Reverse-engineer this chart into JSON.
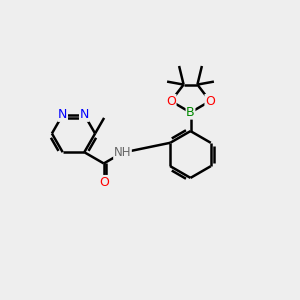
{
  "bg_color": "#eeeeee",
  "bond_color": "#000000",
  "bond_width": 1.8,
  "N_color": "#0000ff",
  "O_color": "#ff0000",
  "B_color": "#008800",
  "NH_color": "#666666",
  "xlim": [
    0,
    10
  ],
  "ylim": [
    0,
    10
  ]
}
